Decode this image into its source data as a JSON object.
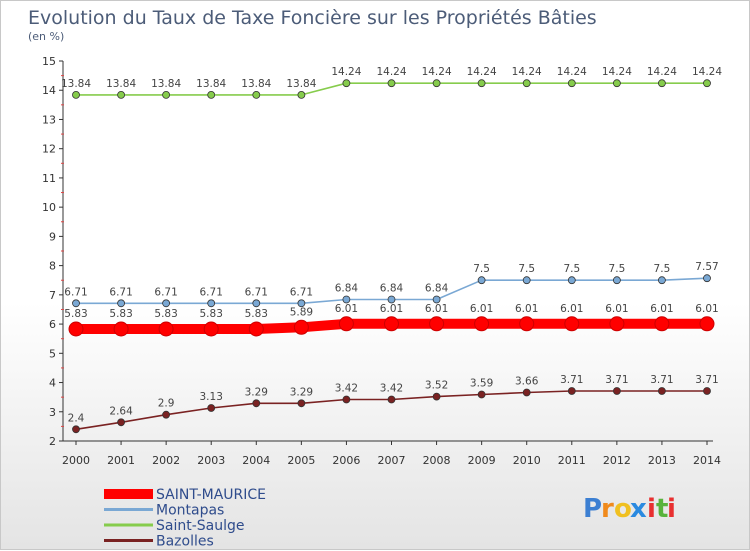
{
  "chart_data": {
    "type": "line",
    "title": "Evolution du Taux de Taxe Foncière sur les Propriétés Bâties",
    "subtitle": "(en %)",
    "xlabel": "",
    "ylabel": "",
    "x": [
      "2000",
      "2001",
      "2002",
      "2003",
      "2004",
      "2005",
      "2006",
      "2007",
      "2008",
      "2009",
      "2010",
      "2011",
      "2012",
      "2013",
      "2014"
    ],
    "ylim": [
      2,
      15
    ],
    "yticks": [
      "2",
      "3",
      "4",
      "5",
      "6",
      "7",
      "8",
      "9",
      "10",
      "11",
      "12",
      "13",
      "14",
      "15"
    ],
    "series": [
      {
        "name": "SAINT-MAURICE",
        "color": "#ff0000",
        "emphasis": true,
        "values": [
          5.83,
          5.83,
          5.83,
          5.83,
          5.83,
          5.89,
          6.01,
          6.01,
          6.01,
          6.01,
          6.01,
          6.01,
          6.01,
          6.01,
          6.01
        ],
        "labels": [
          "5.83",
          "5.83",
          "5.83",
          "5.83",
          "5.83",
          "5.89",
          "6.01",
          "6.01",
          "6.01",
          "6.01",
          "6.01",
          "6.01",
          "6.01",
          "6.01",
          "6.01"
        ]
      },
      {
        "name": "Montapas",
        "color": "#7aa8d4",
        "emphasis": false,
        "values": [
          6.71,
          6.71,
          6.71,
          6.71,
          6.71,
          6.71,
          6.84,
          6.84,
          6.84,
          7.5,
          7.5,
          7.5,
          7.5,
          7.5,
          7.57
        ],
        "labels": [
          "6.71",
          "6.71",
          "6.71",
          "6.71",
          "6.71",
          "6.71",
          "6.84",
          "6.84",
          "6.84",
          "7.5",
          "7.5",
          "7.5",
          "7.5",
          "7.5",
          "7.57"
        ]
      },
      {
        "name": "Saint-Saulge",
        "color": "#86cc4c",
        "emphasis": false,
        "values": [
          13.84,
          13.84,
          13.84,
          13.84,
          13.84,
          13.84,
          14.24,
          14.24,
          14.24,
          14.24,
          14.24,
          14.24,
          14.24,
          14.24,
          14.24
        ],
        "labels": [
          "13.84",
          "13.84",
          "13.84",
          "13.84",
          "13.84",
          "13.84",
          "14.24",
          "14.24",
          "14.24",
          "14.24",
          "14.24",
          "14.24",
          "14.24",
          "14.24",
          "14.24"
        ]
      },
      {
        "name": "Bazolles",
        "color": "#7a2222",
        "emphasis": false,
        "values": [
          2.4,
          2.64,
          2.9,
          3.13,
          3.29,
          3.29,
          3.42,
          3.42,
          3.52,
          3.59,
          3.66,
          3.71,
          3.71,
          3.71,
          3.71
        ],
        "labels": [
          "2.4",
          "2.64",
          "2.9",
          "3.13",
          "3.29",
          "3.29",
          "3.42",
          "3.42",
          "3.52",
          "3.59",
          "3.66",
          "3.71",
          "3.71",
          "3.71",
          "3.71"
        ]
      }
    ],
    "legend_placement": "bottom-left"
  },
  "logo": {
    "text": "Proxiti",
    "letters": [
      "P",
      "r",
      "o",
      "x",
      "i",
      "t",
      "i"
    ]
  },
  "colors": {
    "axis": "#333333",
    "grid_mark": "#dd4444",
    "title": "#4c5c78",
    "legend_text": "#2f4c8c"
  }
}
